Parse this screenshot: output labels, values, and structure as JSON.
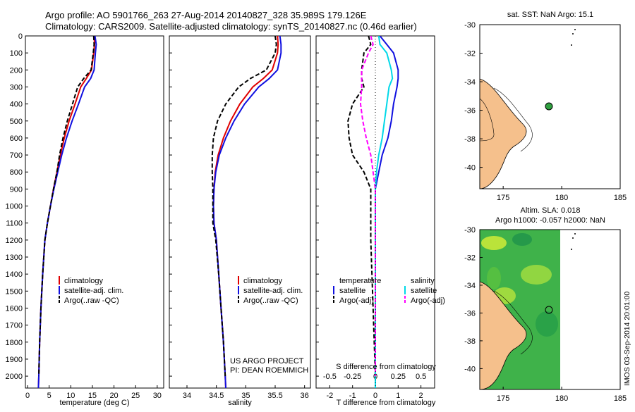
{
  "header": {
    "line1": "Argo profile: AO 5901766_263 27-Aug-2014 20140827_328 35.989S 179.126E",
    "line2": "Climatology: CARS2009. Satellite-adjusted climatology: synTS_20140827.nc (0.46d earlier)"
  },
  "watermark": "IMOS 03-Sep-2014 20:01:00",
  "credits": {
    "line1": "US ARGO PROJECT",
    "line2": "PI: DEAN ROEMMICH"
  },
  "colors": {
    "climatology": "#e00000",
    "satellite": "#1010e0",
    "argo": "#000000",
    "sat_s": "#00d8e8",
    "argo_s": "#ff00ff",
    "land": "#f5c08c",
    "circle": "#30a040"
  },
  "chart_data": [
    {
      "type": "line",
      "id": "temperature",
      "xlabel": "temperature (deg C)",
      "ylabel": "",
      "xlim": [
        -0.5,
        31.5
      ],
      "ylim": [
        0,
        2070
      ],
      "xticks": [
        0,
        5,
        10,
        15,
        20,
        25,
        30
      ],
      "yticks": [
        0,
        100,
        200,
        300,
        400,
        500,
        600,
        700,
        800,
        900,
        1000,
        1100,
        1200,
        1300,
        1400,
        1500,
        1600,
        1700,
        1800,
        1900,
        2000
      ],
      "legend": [
        "climatology",
        "satellite-adj. clim.",
        "Argo(..raw -QC)"
      ],
      "series": [
        {
          "name": "climatology",
          "x": [
            15.4,
            15.5,
            15.3,
            14.8,
            13.6,
            12.3,
            11.0,
            9.6,
            8.5,
            7.6,
            6.8,
            6.0,
            5.3,
            4.6,
            4.0,
            3.5,
            3.1,
            2.8,
            2.6,
            2.5
          ],
          "y": [
            0,
            50,
            100,
            200,
            250,
            300,
            400,
            500,
            600,
            700,
            800,
            900,
            1000,
            1100,
            1200,
            1400,
            1600,
            1800,
            2000,
            2070
          ]
        },
        {
          "name": "satellite-adj. clim.",
          "x": [
            15.6,
            15.9,
            15.7,
            15.4,
            14.6,
            13.2,
            11.8,
            10.3,
            9.0,
            7.9,
            7.0,
            6.1,
            5.3,
            4.6,
            4.0,
            3.5,
            3.1,
            2.8,
            2.6,
            2.5
          ],
          "y": [
            0,
            50,
            100,
            200,
            250,
            300,
            400,
            500,
            600,
            700,
            800,
            900,
            1000,
            1100,
            1200,
            1400,
            1600,
            1800,
            2000,
            2070
          ]
        },
        {
          "name": "Argo(..raw -QC)",
          "x": [
            15.3,
            15.4,
            15.2,
            14.7,
            13.0,
            11.6,
            10.4,
            9.2,
            8.2,
            7.4,
            6.8,
            6.0,
            5.3,
            4.6,
            4.0,
            3.5,
            3.1,
            2.8,
            2.6
          ],
          "y": [
            0,
            50,
            100,
            200,
            250,
            300,
            400,
            500,
            600,
            700,
            800,
            900,
            1000,
            1100,
            1200,
            1400,
            1600,
            1800,
            2000
          ]
        }
      ]
    },
    {
      "type": "line",
      "id": "salinity",
      "xlabel": "salinity",
      "xlim": [
        33.7,
        36.1
      ],
      "ylim": [
        0,
        2070
      ],
      "xticks": [
        34,
        34.5,
        35,
        35.5,
        36
      ],
      "legend": [
        "climatology",
        "satellite-adj. clim.",
        "Argo(..raw -QC)"
      ],
      "series": [
        {
          "name": "climatology",
          "x": [
            35.54,
            35.55,
            35.54,
            35.45,
            35.3,
            35.12,
            34.9,
            34.74,
            34.62,
            34.53,
            34.48,
            34.46,
            34.45,
            34.46,
            34.5,
            34.54,
            34.58,
            34.62,
            34.65,
            34.66
          ],
          "y": [
            0,
            50,
            100,
            200,
            250,
            300,
            400,
            500,
            600,
            700,
            800,
            900,
            1000,
            1100,
            1200,
            1400,
            1600,
            1800,
            2000,
            2070
          ]
        },
        {
          "name": "satellite-adj. clim.",
          "x": [
            35.58,
            35.6,
            35.6,
            35.54,
            35.4,
            35.22,
            34.98,
            34.8,
            34.66,
            34.55,
            34.49,
            34.46,
            34.45,
            34.46,
            34.5,
            34.54,
            34.58,
            34.62,
            34.65,
            34.66
          ],
          "y": [
            0,
            50,
            100,
            200,
            250,
            300,
            400,
            500,
            600,
            700,
            800,
            900,
            1000,
            1100,
            1200,
            1400,
            1600,
            1800,
            2000,
            2070
          ]
        },
        {
          "name": "Argo(..raw -QC)",
          "x": [
            35.5,
            35.52,
            35.5,
            35.35,
            35.08,
            34.88,
            34.66,
            34.52,
            34.45,
            34.43,
            34.43,
            34.44,
            34.44,
            34.44,
            34.49,
            34.54,
            34.58,
            34.62,
            34.65
          ],
          "y": [
            0,
            50,
            100,
            200,
            250,
            300,
            400,
            500,
            600,
            700,
            800,
            900,
            1000,
            1100,
            1200,
            1400,
            1600,
            1800,
            2000
          ]
        }
      ]
    },
    {
      "type": "line",
      "id": "differences",
      "xlabel": "T difference from climatology",
      "xlabel_top": "S difference from climatology",
      "xlim": [
        -2.6,
        2.6
      ],
      "ylim": [
        0,
        2070
      ],
      "xticks": [
        -2,
        -1,
        0,
        1,
        2
      ],
      "sticks": [
        "-0.5",
        "-0.25",
        "0",
        "0.25",
        "0.5"
      ],
      "legend_titles": [
        "temperature",
        "salinity"
      ],
      "legend": [
        "satellite",
        "Argo(-adj)",
        "satellite",
        "Argo(-adj)"
      ],
      "series": [
        {
          "name": "temperature satellite",
          "x": [
            0.2,
            0.5,
            0.8,
            1.0,
            1.0,
            0.95,
            0.8,
            0.7,
            0.55,
            0.3,
            0.15,
            0.0,
            0.0,
            0.0,
            0.0,
            0.0
          ],
          "y": [
            0,
            50,
            100,
            200,
            250,
            300,
            400,
            500,
            600,
            700,
            800,
            900,
            1000,
            1200,
            1600,
            2070
          ]
        },
        {
          "name": "temperature Argo(-adj)",
          "x": [
            -0.3,
            -0.2,
            -0.5,
            -0.6,
            -0.6,
            -0.5,
            -1.0,
            -1.2,
            -1.15,
            -1.0,
            -0.5,
            -0.2,
            -0.2,
            -0.2,
            -0.1,
            0.0
          ],
          "y": [
            0,
            50,
            100,
            200,
            250,
            300,
            400,
            500,
            600,
            700,
            800,
            900,
            1000,
            1200,
            1600,
            2000
          ]
        },
        {
          "name": "salinity satellite",
          "x": [
            0.15,
            0.2,
            0.5,
            0.7,
            0.75,
            0.6,
            0.5,
            0.4,
            0.3,
            0.15,
            0.05,
            0.0,
            0.0,
            0.0,
            0.0
          ],
          "y": [
            0,
            50,
            100,
            200,
            250,
            300,
            400,
            500,
            600,
            700,
            800,
            900,
            1000,
            1600,
            2070
          ]
        },
        {
          "name": "salinity Argo(-adj)",
          "x": [
            -0.2,
            -0.1,
            -0.3,
            -0.6,
            -0.6,
            -0.6,
            -0.65,
            -0.55,
            -0.4,
            -0.2,
            -0.1,
            0.0,
            0.0,
            0.0
          ],
          "y": [
            0,
            50,
            100,
            200,
            250,
            300,
            400,
            500,
            600,
            700,
            800,
            900,
            1000,
            2000
          ]
        }
      ]
    },
    {
      "type": "map",
      "id": "sst_map",
      "title": "sat. SST: NaN Argo: 15.1",
      "xlim": [
        173,
        185
      ],
      "ylim": [
        -41.5,
        -30
      ],
      "xticks": [
        175,
        180,
        185
      ],
      "yticks": [
        -30,
        -32,
        -34,
        -36,
        -38,
        -40
      ],
      "argo_position": [
        179.126,
        -35.989
      ]
    },
    {
      "type": "map",
      "id": "sla_map",
      "title_line1": "Altim. SLA: 0.018",
      "title_line2": "Argo h1000: -0.057 h2000: NaN",
      "xlim": [
        173,
        185
      ],
      "ylim": [
        -41.5,
        -30
      ],
      "xticks": [
        175,
        180,
        185
      ],
      "yticks": [
        -30,
        -32,
        -34,
        -36,
        -38,
        -40
      ],
      "argo_position": [
        179.126,
        -35.989
      ]
    }
  ]
}
